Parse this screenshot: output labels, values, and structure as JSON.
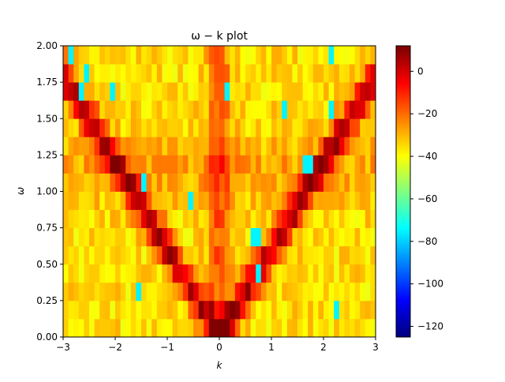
{
  "chart_data": {
    "type": "heatmap",
    "title": "ω − k plot",
    "xlabel": "k",
    "ylabel": "ω",
    "xlim": [
      -3,
      3
    ],
    "ylim": [
      0,
      2
    ],
    "x_ticks": [
      "−3",
      "−2",
      "−1",
      "0",
      "1",
      "2",
      "3"
    ],
    "x_tick_values": [
      -3,
      -2,
      -1,
      0,
      1,
      2,
      3
    ],
    "y_ticks": [
      "0.00",
      "0.25",
      "0.50",
      "0.75",
      "1.00",
      "1.25",
      "1.50",
      "1.75",
      "2.00"
    ],
    "y_tick_values": [
      0,
      0.25,
      0.5,
      0.75,
      1.0,
      1.25,
      1.5,
      1.75,
      2.0
    ],
    "colormap": "jet",
    "color_range": [
      -125,
      12
    ],
    "colorbar_ticks": [
      "0",
      "−20",
      "−40",
      "−60",
      "−80",
      "−100",
      "−120"
    ],
    "colorbar_tick_values": [
      0,
      -20,
      -40,
      -60,
      -80,
      -100,
      -120
    ],
    "grid": {
      "nx": 60,
      "ny": 16,
      "description_of_values": "dB-like intensity, approximately -40 background with a V-shaped ridge near -5 following omega ≈ 0.6*|k|",
      "ridge": {
        "slope": 0.6,
        "peak_value": 5,
        "background": -35
      }
    }
  }
}
